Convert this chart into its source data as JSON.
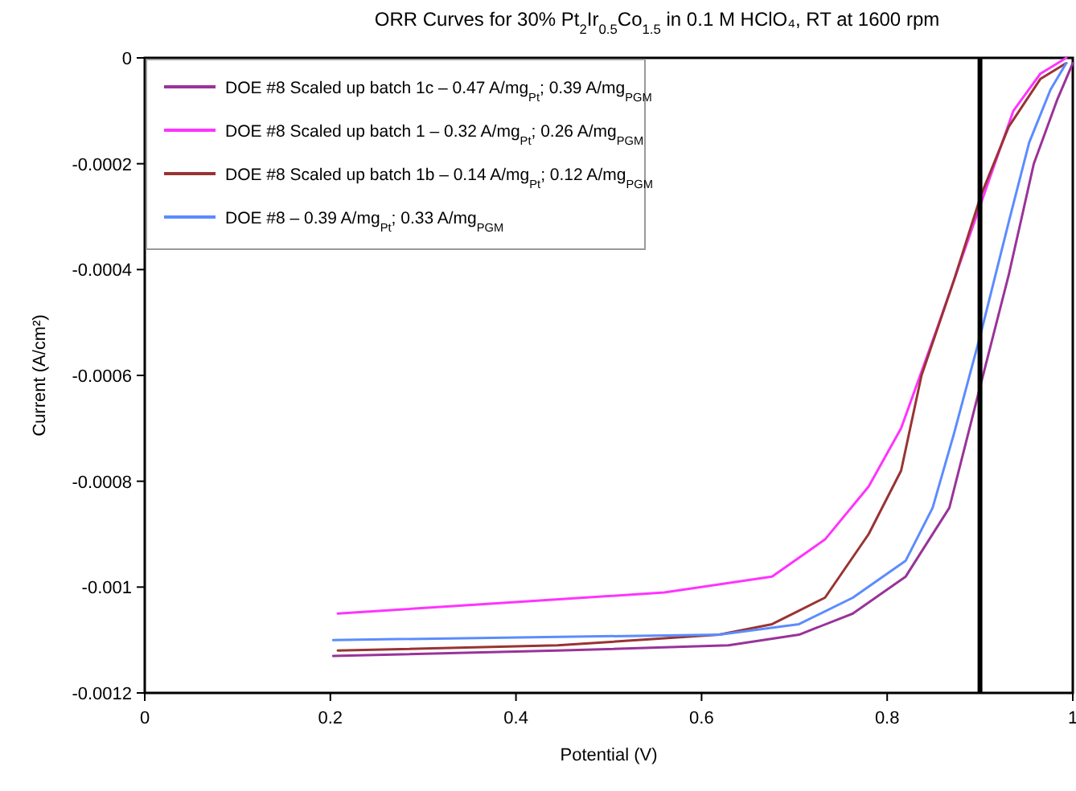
{
  "chart_data": {
    "type": "line",
    "title": "ORR Curves for 30% Pt$_{2}$Ir$_{0.5}$Co$_{1.5}$ in 0.1 M HClO₄, RT at 1600 rpm",
    "xlabel": "Potential (V)",
    "ylabel": "Current (A/cm²)",
    "xlim": [
      0,
      1
    ],
    "xticks": [
      0,
      0.2,
      0.4,
      0.6,
      0.8,
      1
    ],
    "ylim": [
      -0.0012,
      0
    ],
    "yticks": [
      -0.0012,
      -0.001,
      -0.0008,
      -0.0006,
      -0.0004,
      -0.0002,
      0
    ],
    "grid": false,
    "legend": "top left",
    "marker": "none",
    "line_style": "solid",
    "ref_lines": [
      {
        "axis": "x",
        "value": 0.9,
        "color": "#000000"
      }
    ],
    "series": [
      {
        "name": "DOE #8 Scaled up batch 1c – 0.47 A/mg$_{Pt}$; 0.39 A/mg$_{PGM}$",
        "color": "#993399",
        "x": [
          0.203,
          0.445,
          0.629,
          0.705,
          0.763,
          0.82,
          0.867,
          0.896,
          0.931,
          0.958,
          0.983,
          1.0
        ],
        "values": [
          -0.00113,
          -0.00112,
          -0.00111,
          -0.00109,
          -0.00105,
          -0.00098,
          -0.00085,
          -0.00065,
          -0.00041,
          -0.0002,
          -8e-05,
          -1e-05
        ]
      },
      {
        "name": "DOE #8 Scaled up batch 1 – 0.32 A/mg$_{Pt}$; 0.26 A/mg$_{PGM}$",
        "color": "#ff33ff",
        "x": [
          0.208,
          0.386,
          0.56,
          0.676,
          0.733,
          0.78,
          0.815,
          0.854,
          0.896,
          0.936,
          0.965,
          0.993
        ],
        "values": [
          -0.00105,
          -0.00103,
          -0.00101,
          -0.00098,
          -0.00091,
          -0.00081,
          -0.0007,
          -0.00051,
          -0.0003,
          -0.0001,
          -3e-05,
          0
        ]
      },
      {
        "name": "DOE #8 Scaled up batch 1b – 0.14 A/mg$_{Pt}$; 0.12 A/mg$_{PGM}$",
        "color": "#993333",
        "x": [
          0.208,
          0.445,
          0.619,
          0.676,
          0.733,
          0.78,
          0.815,
          0.837,
          0.872,
          0.901,
          0.931,
          0.965,
          0.993
        ],
        "values": [
          -0.00112,
          -0.00111,
          -0.00109,
          -0.00107,
          -0.00102,
          -0.0009,
          -0.00078,
          -0.0006,
          -0.00042,
          -0.00026,
          -0.00013,
          -4e-05,
          -1e-05
        ]
      },
      {
        "name": "DOE #8 – 0.39 A/mg$_{Pt}$; 0.33 A/mg$_{PGM}$",
        "color": "#5b8cff",
        "x": [
          0.203,
          0.619,
          0.705,
          0.763,
          0.82,
          0.849,
          0.872,
          0.901,
          0.931,
          0.953,
          0.976,
          0.993
        ],
        "values": [
          -0.0011,
          -0.00109,
          -0.00107,
          -0.00102,
          -0.00095,
          -0.00085,
          -0.00071,
          -0.00052,
          -0.00031,
          -0.00016,
          -6e-05,
          -1e-05
        ]
      }
    ]
  }
}
